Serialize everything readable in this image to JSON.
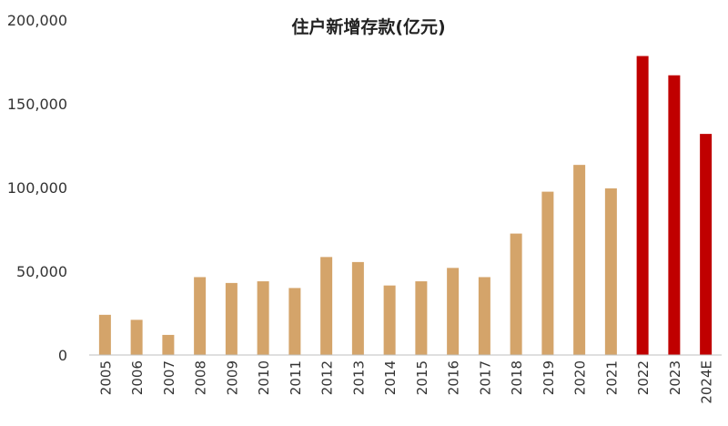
{
  "chart_data": {
    "type": "bar",
    "title": "住户新增存款(亿元)",
    "xlabel": "",
    "ylabel": "",
    "ylim": [
      0,
      200000
    ],
    "yticks": [
      "200,000",
      "150,000",
      "100,000",
      "50,000",
      "0"
    ],
    "ytick_values": [
      200000,
      150000,
      100000,
      50000,
      0
    ],
    "grid": false,
    "categories": [
      "2005",
      "2006",
      "2007",
      "2008",
      "2009",
      "2010",
      "2011",
      "2012",
      "2013",
      "2014",
      "2015",
      "2016",
      "2017",
      "2018",
      "2019",
      "2020",
      "2021",
      "2022",
      "2023",
      "2024E"
    ],
    "values": [
      24000,
      21000,
      12000,
      46500,
      43000,
      44000,
      40000,
      58500,
      55500,
      41500,
      44000,
      52000,
      46500,
      72500,
      97500,
      113500,
      99500,
      178500,
      167000,
      132000
    ],
    "colors": {
      "historical": "#D4A46A",
      "highlight": "#C00000",
      "axis": "#BFBFBF"
    },
    "highlight_categories": [
      "2022",
      "2023",
      "2024E"
    ]
  }
}
